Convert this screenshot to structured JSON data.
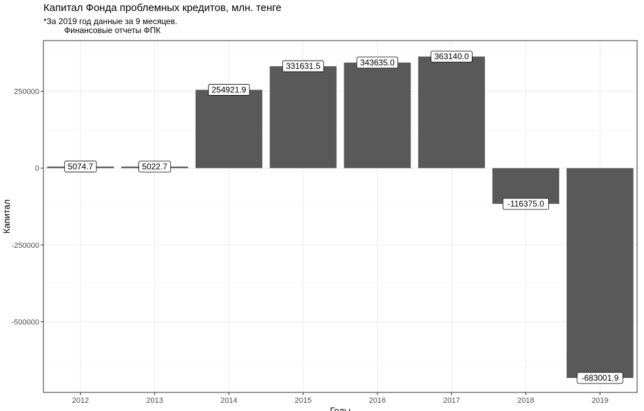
{
  "chart_data": {
    "type": "bar",
    "title": "Капитал Фонда проблемных кредитов, млн. тенге",
    "subtitle": "*За 2019 год данные за 9 месяцев.\n         Финансовые отчеты ФПК",
    "xlabel": "Годы",
    "ylabel": "Капитал",
    "categories": [
      "2012",
      "2013",
      "2014",
      "2015",
      "2016",
      "2017",
      "2018",
      "2019"
    ],
    "values": [
      5074.7,
      5022.7,
      254921.9,
      331631.5,
      343635.0,
      363140.0,
      -116375.0,
      -683001.9
    ],
    "value_labels": [
      "5074.7",
      "5022.7",
      "254921.9",
      "331631.5",
      "343635.0",
      "363140.0",
      "-116375.0",
      "-683001.9"
    ],
    "ylim": [
      -730000,
      415000
    ],
    "yticks": [
      250000,
      0,
      -250000,
      -500000
    ],
    "ytick_labels": [
      "250000",
      "0",
      "-250000",
      "-500000"
    ],
    "grid": true,
    "legend": "none",
    "colors": {
      "bar": "#595959",
      "panel_border": "#333333",
      "grid_major": "#ebebeb",
      "grid_minor": "#f5f5f5",
      "label_fill": "#ffffff"
    }
  }
}
